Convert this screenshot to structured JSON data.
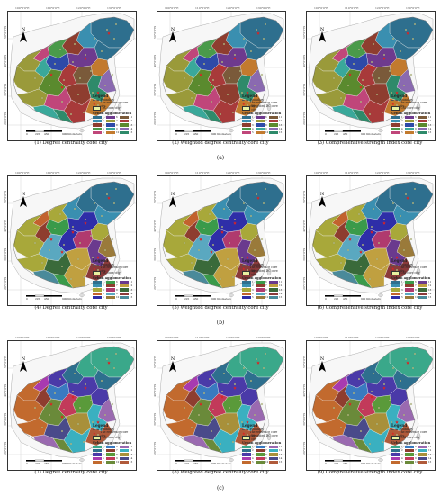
{
  "ticks": {
    "top": [
      "100°0'0\"E",
      "110°0'0\"E",
      "120°0'0\"E",
      "130°0'0\"E"
    ],
    "left": [
      "50°0'0\"N",
      "40°0'0\"N",
      "30°0'0\"N",
      "20°0'0\"N"
    ]
  },
  "scale_labels": [
    "0",
    "225",
    "450",
    "900 Kilometers"
  ],
  "north_label": "N",
  "legend": {
    "title": "Legend",
    "boundary": "Boundary",
    "reference": "The reference core city",
    "ua_title": "Urban agglomeration",
    "numbers": [
      "1",
      "2",
      "3",
      "4",
      "5",
      "6",
      "7",
      "8",
      "9",
      "10",
      "11",
      "12",
      "13",
      "14",
      "15"
    ]
  },
  "row_captions": [
    "(a)",
    "(b)",
    "(c)"
  ],
  "panels": [
    {
      "caption": "(1) Degree centrality core city",
      "core_label": "DC core city",
      "palette": "a"
    },
    {
      "caption": "(2) Weighted degree centrality core city",
      "core_label": "Weighted DC core city",
      "palette": "a"
    },
    {
      "caption": "(3) Comprehensive strength index core city",
      "core_label": "CSI core city",
      "palette": "a"
    },
    {
      "caption": "(4) Degree centrality core city",
      "core_label": "DC core city",
      "palette": "b"
    },
    {
      "caption": "(5) Weighted degree centrality core city",
      "core_label": "Weighted DC core city",
      "palette": "b"
    },
    {
      "caption": "(6) Comprehensive strength index core city",
      "core_label": "CSI core city",
      "palette": "b"
    },
    {
      "caption": "(7) Degree centrality core city",
      "core_label": "DC core city",
      "palette": "c"
    },
    {
      "caption": "(8) Weighted degree centrality core city",
      "core_label": "Weighted DC core city",
      "palette": "c"
    },
    {
      "caption": "(9) Comprehensive strength index core city",
      "core_label": "CSI core city",
      "palette": "c"
    }
  ],
  "palettes": {
    "a": [
      "#2e6f8e",
      "#3a8fb0",
      "#8e3d2f",
      "#4a9a4a",
      "#c0467a",
      "#6e3a8e",
      "#9a9a3a",
      "#2e4aa8",
      "#3aa89a",
      "#c27a2e",
      "#7a5a3a",
      "#a83a3a",
      "#5a8a2e",
      "#8a6ab0",
      "#2e8a6a"
    ],
    "b": [
      "#2e6f8e",
      "#3a8fb0",
      "#a8a83a",
      "#c2622e",
      "#2e2ea8",
      "#3a9a4a",
      "#8e3d2f",
      "#b03a6e",
      "#5aa8c0",
      "#9a7a3a",
      "#6a3a8e",
      "#c0a040",
      "#3a6a3a",
      "#8a3a3a",
      "#4a8a9a"
    ],
    "c": [
      "#3aa88a",
      "#2e6f8e",
      "#4a3aa8",
      "#a83ab0",
      "#c26a2e",
      "#3a7ac0",
      "#8e3d2f",
      "#5a9a3a",
      "#c23a5a",
      "#6a8a3a",
      "#9a6ab0",
      "#3ab0c0",
      "#a8903a",
      "#4a4a8a",
      "#b05a3a"
    ]
  }
}
